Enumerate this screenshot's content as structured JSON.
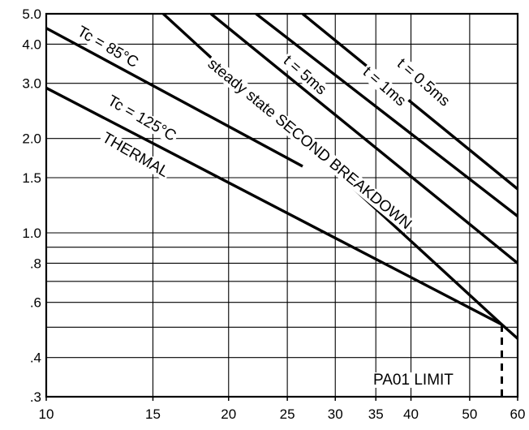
{
  "chart_data": {
    "type": "line",
    "title": "",
    "xlabel": "",
    "ylabel": "",
    "x_scale": "log",
    "y_scale": "log",
    "xlim": [
      10,
      60
    ],
    "ylim": [
      0.3,
      5.0
    ],
    "grid": true,
    "x_ticks": [
      {
        "value": 10,
        "label": "10"
      },
      {
        "value": 15,
        "label": "15"
      },
      {
        "value": 20,
        "label": "20"
      },
      {
        "value": 25,
        "label": "25"
      },
      {
        "value": 30,
        "label": "30"
      },
      {
        "value": 35,
        "label": "35"
      },
      {
        "value": 40,
        "label": "40"
      },
      {
        "value": 50,
        "label": "50"
      },
      {
        "value": 60,
        "label": "60"
      }
    ],
    "y_ticks": [
      {
        "value": 0.3,
        "label": ".3"
      },
      {
        "value": 0.4,
        "label": ".4"
      },
      {
        "value": 0.6,
        "label": ".6"
      },
      {
        "value": 0.8,
        "label": ".8"
      },
      {
        "value": 1.0,
        "label": "1.0"
      },
      {
        "value": 1.5,
        "label": "1.5"
      },
      {
        "value": 2.0,
        "label": "2.0"
      },
      {
        "value": 3.0,
        "label": "3.0"
      },
      {
        "value": 4.0,
        "label": "4.0"
      },
      {
        "value": 5.0,
        "label": "5.0"
      }
    ],
    "y_minor_gridlines": [
      0.5,
      0.7,
      0.9
    ],
    "series": [
      {
        "name": "t = 0.5ms",
        "points": [
          [
            26.5,
            5.0
          ],
          [
            60,
            1.38
          ]
        ]
      },
      {
        "name": "t = 1ms",
        "points": [
          [
            22.2,
            5.0
          ],
          [
            60,
            1.13
          ]
        ]
      },
      {
        "name": "t = 5ms",
        "points": [
          [
            18.7,
            5.0
          ],
          [
            60,
            0.8
          ]
        ]
      },
      {
        "name": "steady state SECOND BREAKDOWN",
        "points": [
          [
            15.6,
            5.0
          ],
          [
            56.5,
            0.51
          ],
          [
            60,
            0.46
          ]
        ]
      },
      {
        "name": "Tc = 85°C",
        "points": [
          [
            10,
            4.5
          ],
          [
            26.5,
            1.63
          ]
        ]
      },
      {
        "name": "Tc = 125°C",
        "points": [
          [
            10,
            2.9
          ],
          [
            56.5,
            0.51
          ]
        ]
      }
    ],
    "annotations": [
      {
        "text": "THERMAL",
        "near": "Tc = 125°C"
      },
      {
        "text": "PA01 LIMIT",
        "x": 56.5,
        "marker": "dashed vertical line"
      }
    ]
  }
}
